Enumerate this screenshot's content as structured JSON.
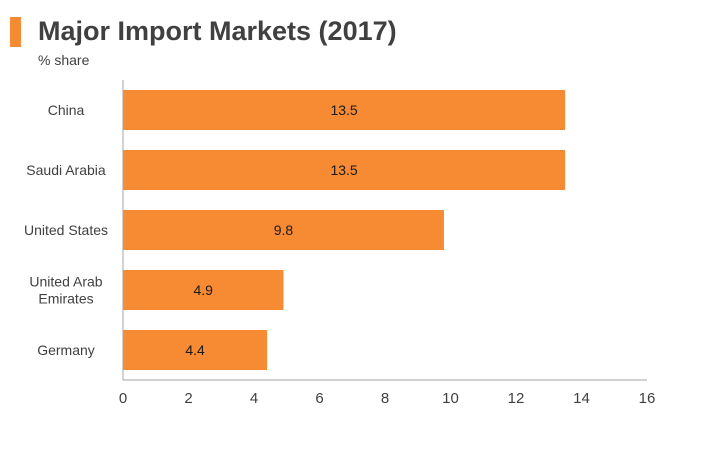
{
  "colors": {
    "accent": "#F68B33",
    "bar": "#F68B33",
    "axis": "#A6A6A6",
    "text": "#404040"
  },
  "title": "Major Import Markets (2017)",
  "subtitle": "% share",
  "chart_data": {
    "type": "bar",
    "orientation": "horizontal",
    "title": "Major Import Markets (2017)",
    "subtitle": "% share",
    "categories": [
      [
        "China"
      ],
      [
        "Saudi Arabia"
      ],
      [
        "United States"
      ],
      [
        "United Arab",
        "Emirates"
      ],
      [
        "Germany"
      ]
    ],
    "values": [
      13.5,
      13.5,
      9.8,
      4.9,
      4.4
    ],
    "data_labels": [
      "13.5",
      "13.5",
      "9.8",
      "4.9",
      "4.4"
    ],
    "xlim": [
      0,
      16
    ],
    "xticks": [
      0,
      2,
      4,
      6,
      8,
      10,
      12,
      14,
      16
    ],
    "grid": false,
    "legend": "none"
  }
}
